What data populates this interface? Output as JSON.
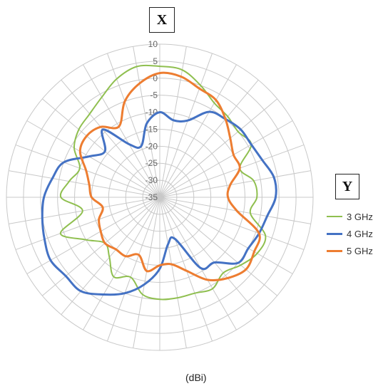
{
  "axis_labels": {
    "x": "X",
    "y": "Y"
  },
  "unit_label": "(dBi)",
  "chart_data": {
    "type": "radar",
    "radial_ticks": [
      10,
      5,
      0,
      -5,
      -10,
      -15,
      -20,
      -25,
      -30,
      -35
    ],
    "rlim": [
      -35,
      10
    ],
    "grid": true,
    "angular_spokes": 36,
    "legend_position": "right",
    "series": [
      {
        "name": "3 GHz",
        "color": "#8fbf4f",
        "values_deg_dbi": [
          [
            0,
            3.5
          ],
          [
            10,
            3
          ],
          [
            20,
            0
          ],
          [
            30,
            -3
          ],
          [
            40,
            -4
          ],
          [
            50,
            -5
          ],
          [
            60,
            -4
          ],
          [
            70,
            -10
          ],
          [
            80,
            -7
          ],
          [
            90,
            -6.5
          ],
          [
            100,
            -8
          ],
          [
            110,
            -2
          ],
          [
            120,
            -2
          ],
          [
            130,
            -4
          ],
          [
            140,
            -6
          ],
          [
            150,
            -4
          ],
          [
            160,
            -5
          ],
          [
            170,
            -5
          ],
          [
            180,
            -5
          ],
          [
            190,
            -6
          ],
          [
            200,
            -10
          ],
          [
            210,
            -8
          ],
          [
            220,
            -12
          ],
          [
            230,
            -14
          ],
          [
            240,
            -10
          ],
          [
            250,
            -4
          ],
          [
            260,
            -12
          ],
          [
            270,
            -6
          ],
          [
            280,
            -8
          ],
          [
            290,
            -10
          ],
          [
            300,
            -6
          ],
          [
            310,
            -4
          ],
          [
            320,
            -3
          ],
          [
            330,
            -1
          ],
          [
            340,
            2
          ],
          [
            350,
            4
          ]
        ]
      },
      {
        "name": "4 GHz",
        "color": "#4472c4",
        "values_deg_dbi": [
          [
            0,
            -10
          ],
          [
            10,
            -12
          ],
          [
            20,
            -11
          ],
          [
            30,
            -6
          ],
          [
            40,
            -5
          ],
          [
            50,
            -4
          ],
          [
            60,
            -4
          ],
          [
            70,
            -3
          ],
          [
            80,
            -1
          ],
          [
            90,
            -1
          ],
          [
            100,
            -3
          ],
          [
            110,
            -4
          ],
          [
            120,
            -5
          ],
          [
            130,
            -5
          ],
          [
            140,
            -10
          ],
          [
            150,
            -11
          ],
          [
            160,
            -22
          ],
          [
            170,
            -21
          ],
          [
            180,
            -14
          ],
          [
            190,
            -9
          ],
          [
            200,
            -5
          ],
          [
            210,
            -2
          ],
          [
            220,
            1
          ],
          [
            230,
            1
          ],
          [
            240,
            2
          ],
          [
            250,
            1
          ],
          [
            260,
            0
          ],
          [
            270,
            -1
          ],
          [
            280,
            -3
          ],
          [
            290,
            -5
          ],
          [
            300,
            -11
          ],
          [
            310,
            -14
          ],
          [
            320,
            -9
          ],
          [
            330,
            -17
          ],
          [
            340,
            -19
          ],
          [
            350,
            -13
          ]
        ]
      },
      {
        "name": "5 GHz",
        "color": "#ed7d31",
        "values_deg_dbi": [
          [
            0,
            1.5
          ],
          [
            10,
            1
          ],
          [
            20,
            -1
          ],
          [
            30,
            -2
          ],
          [
            40,
            -5
          ],
          [
            50,
            -8
          ],
          [
            60,
            -10
          ],
          [
            70,
            -10
          ],
          [
            80,
            -14
          ],
          [
            90,
            -15
          ],
          [
            100,
            -12
          ],
          [
            110,
            -4
          ],
          [
            120,
            -3
          ],
          [
            130,
            -2
          ],
          [
            140,
            -4
          ],
          [
            150,
            -7
          ],
          [
            160,
            -12
          ],
          [
            170,
            -15
          ],
          [
            180,
            -15
          ],
          [
            190,
            -13
          ],
          [
            200,
            -17
          ],
          [
            210,
            -15
          ],
          [
            220,
            -15
          ],
          [
            230,
            -14
          ],
          [
            240,
            -15
          ],
          [
            250,
            -16
          ],
          [
            260,
            -18
          ],
          [
            270,
            -15
          ],
          [
            280,
            -14
          ],
          [
            290,
            -12
          ],
          [
            300,
            -8
          ],
          [
            310,
            -7
          ],
          [
            320,
            -8
          ],
          [
            330,
            -11
          ],
          [
            340,
            -5
          ],
          [
            350,
            -1
          ]
        ]
      }
    ]
  }
}
